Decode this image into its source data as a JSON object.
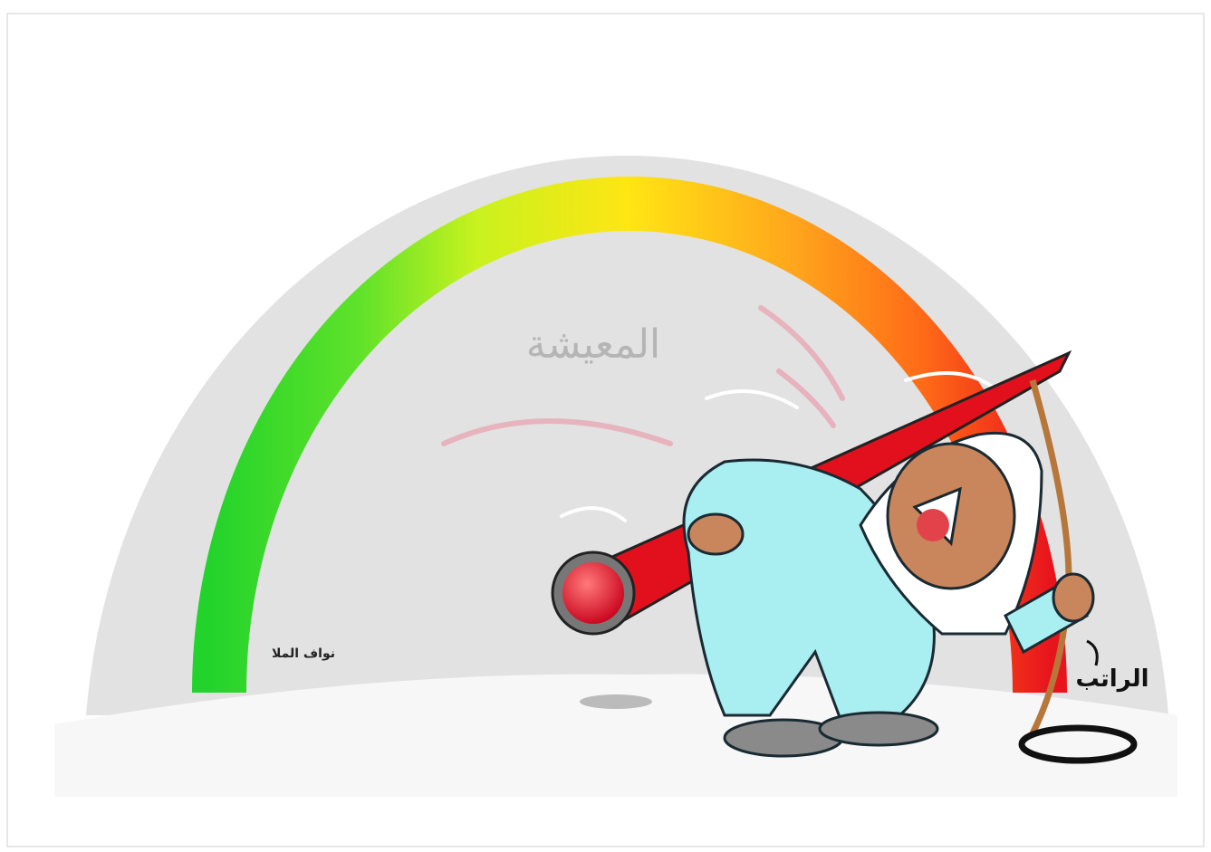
{
  "texts": {
    "gauge_label": "المعيشة",
    "salary_label": "الراتب",
    "signature": "نواف الملا"
  }
}
